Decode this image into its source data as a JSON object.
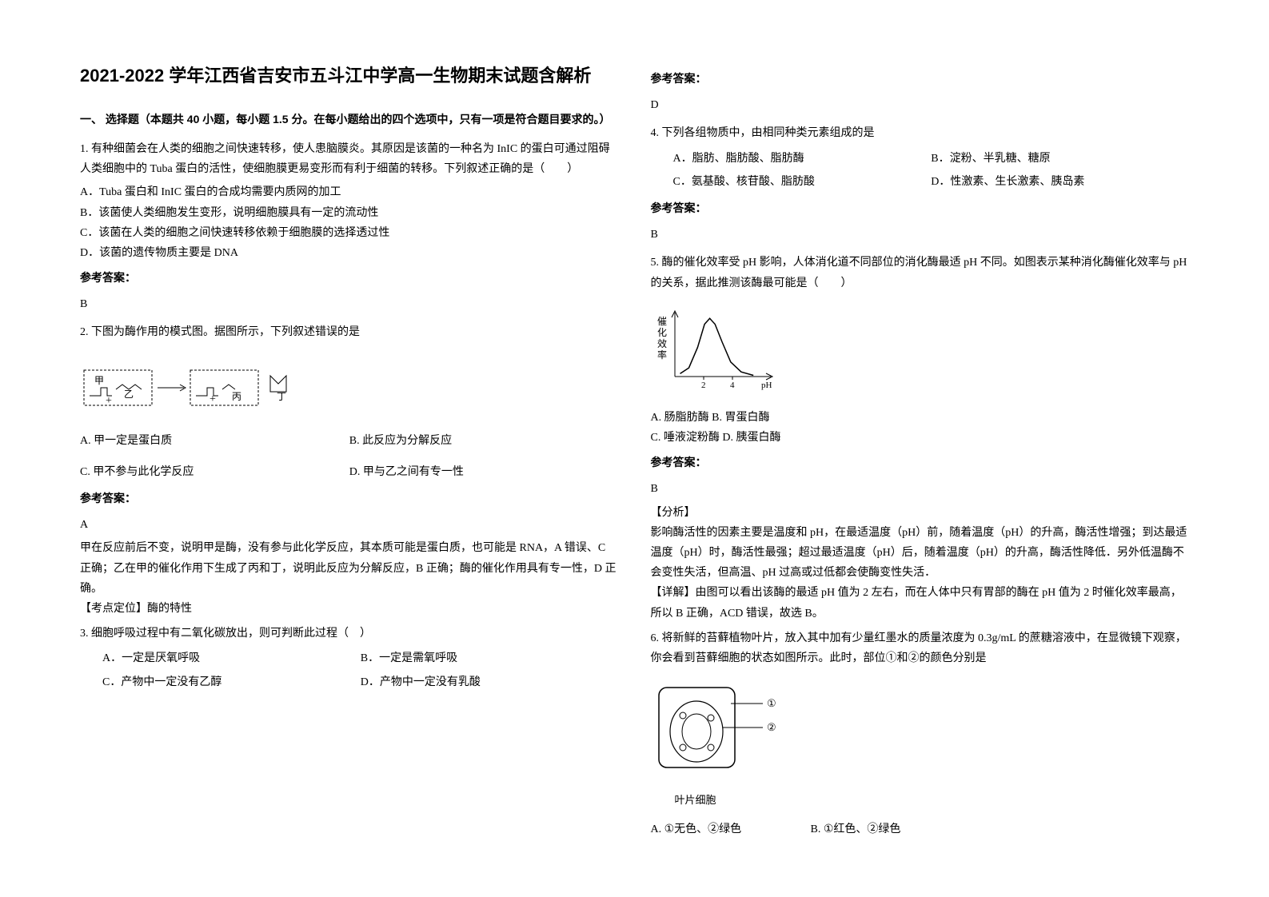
{
  "title": "2021-2022 学年江西省吉安市五斗江中学高一生物期末试题含解析",
  "section1_header": "一、 选择题（本题共 40 小题，每小题 1.5 分。在每小题给出的四个选项中，只有一项是符合题目要求的。）",
  "q1": {
    "stem": "1. 有种细菌会在人类的细胞之间快速转移，使人患脑膜炎。其原因是该菌的一种名为 InIC 的蛋白可通过阻碍人类细胞中的 Tuba 蛋白的活性，使细胞膜更易变形而有利于细菌的转移。下列叙述正确的是（　　）",
    "optA": "A．Tuba 蛋白和 InIC 蛋白的合成均需要内质网的加工",
    "optB": "B．该菌使人类细胞发生变形，说明细胞膜具有一定的流动性",
    "optC": "C．该菌在人类的细胞之间快速转移依赖于细胞膜的选择透过性",
    "optD": "D．该菌的遗传物质主要是 DNA",
    "answer_label": "参考答案：",
    "answer": "B"
  },
  "q2": {
    "stem": "2. 下图为酶作用的模式图。据图所示，下列叙述错误的是",
    "diagram": {
      "labels": [
        "甲",
        "乙",
        "丙",
        "丁"
      ],
      "box_stroke": "#000000",
      "arrow_stroke": "#000000"
    },
    "optA": "A. 甲一定是蛋白质",
    "optB": "B. 此反应为分解反应",
    "optC": "C. 甲不参与此化学反应",
    "optD": "D. 甲与乙之间有专一性",
    "answer_label": "参考答案：",
    "answer": "A",
    "explain1": "甲在反应前后不变，说明甲是酶，没有参与此化学反应，其本质可能是蛋白质，也可能是 RNA，A 错误、C 正确；乙在甲的催化作用下生成了丙和丁，说明此反应为分解反应，B 正确；酶的催化作用具有专一性，D 正确。",
    "explain2": "【考点定位】酶的特性"
  },
  "q3": {
    "stem": "3. 细胞呼吸过程中有二氧化碳放出，则可判断此过程（　）",
    "optA": "A．一定是厌氧呼吸",
    "optB": "B．一定是需氧呼吸",
    "optC": "C．产物中一定没有乙醇",
    "optD": "D．产物中一定没有乳酸",
    "answer_label": "参考答案：",
    "answer": "D"
  },
  "q4": {
    "stem": "4. 下列各组物质中，由相同种类元素组成的是",
    "optA": "A．脂肪、脂肪酸、脂肪酶",
    "optB": "B．淀粉、半乳糖、糖原",
    "optC": "C．氨基酸、核苷酸、脂肪酸",
    "optD": "D．性激素、生长激素、胰岛素",
    "answer_label": "参考答案：",
    "answer": "B"
  },
  "q5": {
    "stem": "5. 酶的催化效率受 pH 影响，人体消化道不同部位的消化酶最适 pH 不同。如图表示某种消化酶催化效率与 pH 的关系，据此推测该酶最可能是（　　）",
    "chart": {
      "type": "line",
      "ylabel": "催化效率",
      "xlabel": "pH",
      "xticks": [
        2,
        4
      ],
      "xlim": [
        0,
        5.5
      ],
      "ylim": [
        0,
        1.1
      ],
      "curve_points": [
        [
          0.3,
          0.05
        ],
        [
          0.8,
          0.15
        ],
        [
          1.3,
          0.5
        ],
        [
          1.7,
          0.9
        ],
        [
          2.0,
          1.0
        ],
        [
          2.3,
          0.9
        ],
        [
          2.7,
          0.6
        ],
        [
          3.2,
          0.25
        ],
        [
          3.8,
          0.08
        ],
        [
          4.5,
          0.02
        ]
      ],
      "axis_color": "#000000",
      "curve_color": "#000000",
      "font_size": 12
    },
    "optA": "A.  肠脂肪酶",
    "optB": "B.  胃蛋白酶",
    "optC": "C.  唾液淀粉酶",
    "optD": "D.  胰蛋白酶",
    "answer_label": "参考答案：",
    "answer": "B",
    "analysis_label": "【分析】",
    "analysis": "影响酶活性的因素主要是温度和 pH，在最适温度（pH）前，随着温度（pH）的升高，酶活性增强；到达最适温度（pH）时，酶活性最强；超过最适温度（pH）后，随着温度（pH）的升高，酶活性降低．另外低温酶不会变性失活，但高温、pH 过高或过低都会使酶变性失活．",
    "detail": "【详解】由图可以看出该酶的最适 pH 值为 2 左右，而在人体中只有胃部的酶在 pH 值为 2 时催化效率最高，所以 B 正确，ACD 错误，故选 B。"
  },
  "q6": {
    "stem": "6. 将新鲜的苔藓植物叶片，放入其中加有少量红墨水的质量浓度为 0.3g/mL 的蔗糖溶液中，在显微镜下观察，你会看到苔藓细胞的状态如图所示。此时，部位①和②的颜色分别是",
    "diagram": {
      "caption": "叶片细胞",
      "label1": "①",
      "label2": "②",
      "stroke": "#000000"
    },
    "optA": "A.  ①无色、②绿色",
    "optB": "B.  ①红色、②绿色"
  },
  "colors": {
    "text": "#000000",
    "background": "#ffffff"
  }
}
